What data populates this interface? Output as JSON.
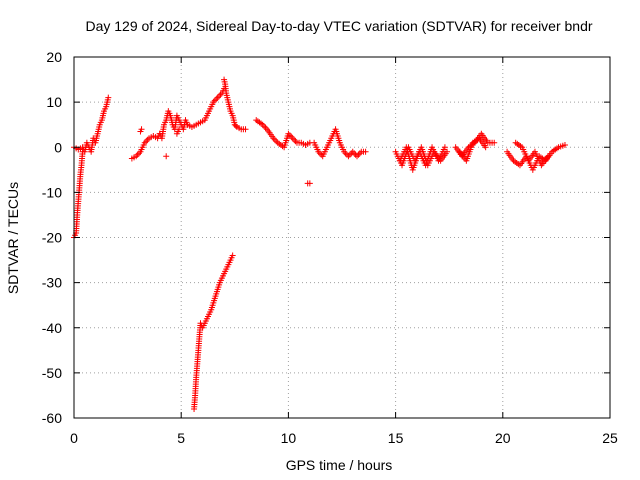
{
  "chart_data": {
    "type": "scatter",
    "title": "Day 129 of 2024, Sidereal Day-to-day VTEC variation (SDTVAR) for receiver bndr",
    "xlabel": "GPS time / hours",
    "ylabel": "SDTVAR / TECUs",
    "xlim": [
      0,
      25
    ],
    "ylim": [
      -60,
      20
    ],
    "xticks": [
      0,
      5,
      10,
      15,
      20,
      25
    ],
    "yticks": [
      -60,
      -50,
      -40,
      -30,
      -20,
      -10,
      0,
      10,
      20
    ],
    "grid": true,
    "marker": "+",
    "color": "#ff0000",
    "series": [
      {
        "name": "SDTVAR",
        "segments": [
          {
            "x": [
              0.0,
              0.1,
              0.15,
              0.2,
              0.25,
              0.3,
              0.35,
              0.4
            ],
            "y": [
              -20,
              -19,
              -15,
              -12,
              -9,
              -6,
              -4,
              -1
            ]
          },
          {
            "x": [
              0.0,
              0.2,
              0.4,
              0.5,
              0.6,
              0.7,
              0.8,
              0.9,
              1.0,
              1.1,
              1.2,
              1.3,
              1.4,
              1.5,
              1.6
            ],
            "y": [
              0,
              -0.5,
              0,
              -1,
              1,
              0,
              -1,
              2,
              1,
              3,
              5,
              6,
              8,
              9,
              11
            ]
          },
          {
            "x": [
              2.7,
              2.9,
              3.1,
              3.3,
              3.5,
              3.7,
              3.9,
              4.0
            ],
            "y": [
              -2.5,
              -2,
              -1,
              1,
              2,
              2.5,
              2,
              3
            ]
          },
          {
            "x": [
              3.1,
              3.15
            ],
            "y": [
              3.5,
              4
            ]
          },
          {
            "x": [
              4.0,
              4.1,
              4.2,
              4.3,
              4.4,
              4.5,
              4.6,
              4.7,
              4.8,
              4.9,
              5.0,
              5.1,
              5.2,
              5.3
            ],
            "y": [
              3,
              2,
              5,
              6,
              8,
              7,
              5,
              4,
              7,
              6,
              5,
              4,
              6,
              5
            ]
          },
          {
            "x": [
              4.3
            ],
            "y": [
              -2
            ]
          },
          {
            "x": [
              4.8,
              4.9
            ],
            "y": [
              3,
              4
            ]
          },
          {
            "x": [
              5.3,
              5.5,
              5.7,
              5.9,
              6.1,
              6.3,
              6.5,
              6.7,
              6.9,
              7.0
            ],
            "y": [
              5,
              4.5,
              5,
              5.5,
              6,
              8,
              10,
              11,
              12,
              13
            ]
          },
          {
            "x": [
              7.0,
              7.05,
              7.1,
              7.2,
              7.3,
              7.4,
              7.5,
              7.6,
              7.8,
              8.0
            ],
            "y": [
              15,
              14,
              12,
              10,
              8,
              7,
              5,
              4.5,
              4,
              4
            ]
          },
          {
            "x": [
              5.6,
              5.65,
              5.7,
              5.75,
              5.8,
              5.85,
              5.9,
              6.0,
              6.2,
              6.4,
              6.6,
              6.8,
              7.0,
              7.2,
              7.4
            ],
            "y": [
              -58,
              -55,
              -51,
              -48,
              -45,
              -42,
              -39,
              -40,
              -38,
              -36,
              -33,
              -30,
              -28,
              -26,
              -24
            ]
          },
          {
            "x": [
              8.5,
              8.8,
              9.0,
              9.3,
              9.5,
              9.8,
              10.0,
              10.2,
              10.4,
              10.6,
              10.8,
              11.0
            ],
            "y": [
              6,
              5,
              4,
              2,
              1,
              0,
              3,
              2,
              1,
              1,
              0.5,
              1
            ]
          },
          {
            "x": [
              10.9,
              11.0
            ],
            "y": [
              -8,
              -8
            ]
          },
          {
            "x": [
              11.2,
              11.4,
              11.6,
              11.8,
              12.0,
              12.2,
              12.4,
              12.6,
              12.8,
              13.0,
              13.2,
              13.4,
              13.6
            ],
            "y": [
              1,
              -1,
              -2,
              0,
              2,
              4,
              1,
              -1,
              -2,
              -1,
              -2,
              -1,
              -1
            ]
          },
          {
            "x": [
              15.0,
              15.3,
              15.6,
              15.9,
              16.2,
              16.5,
              16.8,
              17.1,
              17.4
            ],
            "y": [
              -1,
              -4,
              0,
              -3,
              0,
              -4,
              -1,
              -3,
              -1
            ]
          },
          {
            "x": [
              15.2,
              15.5,
              15.8,
              16.1,
              16.4,
              16.7,
              17.0,
              17.3
            ],
            "y": [
              -3,
              0,
              -5,
              -1,
              -4,
              0,
              -3,
              0
            ]
          },
          {
            "x": [
              17.8,
              18.1,
              18.4,
              18.7,
              19.0,
              19.3,
              19.6
            ],
            "y": [
              0,
              -2,
              0,
              1,
              3,
              1,
              1
            ]
          },
          {
            "x": [
              18.0,
              18.3,
              18.6,
              18.9,
              19.2
            ],
            "y": [
              -1,
              -3,
              1,
              2,
              0
            ]
          },
          {
            "x": [
              20.2,
              20.5,
              20.8,
              21.1,
              21.4,
              21.7,
              22.0,
              22.3,
              22.6,
              22.9
            ],
            "y": [
              -1,
              -3,
              -4,
              -2,
              -5,
              -2,
              -3,
              -1,
              0,
              0.5
            ]
          },
          {
            "x": [
              20.6,
              20.9,
              21.2,
              21.5,
              21.8,
              22.1
            ],
            "y": [
              1,
              0,
              -3,
              -1,
              -4,
              -2
            ]
          }
        ]
      }
    ]
  }
}
